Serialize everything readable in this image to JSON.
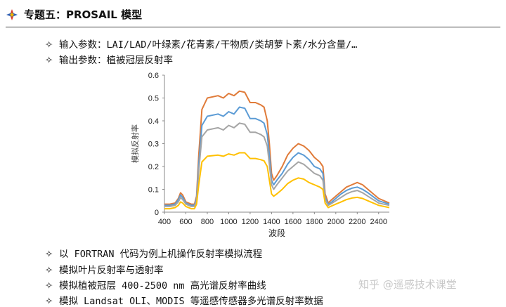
{
  "title": "专题五：PROSAIL 模型",
  "bullets_top": [
    "输入参数：LAI/LAD/叶绿素/花青素/干物质/类胡萝卜素/水分含量/…",
    "输出参数：植被冠层反射率"
  ],
  "bullets_bottom": [
    "以 FORTRAN 代码为例上机操作反射率模拟流程",
    "模拟叶片反射率与透射率",
    "模拟植被冠层 400-2500 nm 高光谱反射率曲线",
    "模拟 Landsat OLI、MODIS 等遥感传感器多光谱反射率数据"
  ],
  "bullet_symbol": "✧",
  "watermark": "知乎 @遥感技术课堂",
  "chart_data": {
    "type": "line",
    "xlabel": "波段",
    "ylabel": "模拟反射率",
    "xlim": [
      400,
      2500
    ],
    "ylim": [
      0,
      0.6
    ],
    "xticks": [
      400,
      600,
      800,
      1000,
      1200,
      1400,
      1600,
      1800,
      2000,
      2200,
      2400
    ],
    "yticks": [
      0,
      0.1,
      0.2,
      0.3,
      0.4,
      0.5,
      0.6
    ],
    "yticklabels": [
      "0",
      "0.1",
      "0.2",
      "0.3",
      "0.4",
      "0.5",
      "0.6"
    ],
    "grid": false,
    "x": [
      400,
      450,
      500,
      530,
      550,
      570,
      600,
      650,
      680,
      700,
      720,
      750,
      800,
      900,
      950,
      1000,
      1050,
      1100,
      1150,
      1200,
      1250,
      1300,
      1330,
      1360,
      1380,
      1400,
      1420,
      1450,
      1500,
      1550,
      1600,
      1650,
      1700,
      1750,
      1800,
      1850,
      1880,
      1900,
      1930,
      1950,
      2000,
      2050,
      2100,
      2150,
      2200,
      2250,
      2300,
      2400,
      2500
    ],
    "series": [
      {
        "color": "#e07b39",
        "values": [
          0.035,
          0.035,
          0.04,
          0.06,
          0.085,
          0.075,
          0.045,
          0.035,
          0.035,
          0.07,
          0.25,
          0.45,
          0.5,
          0.51,
          0.5,
          0.52,
          0.51,
          0.53,
          0.525,
          0.48,
          0.48,
          0.47,
          0.46,
          0.4,
          0.3,
          0.17,
          0.14,
          0.16,
          0.2,
          0.25,
          0.28,
          0.3,
          0.29,
          0.27,
          0.24,
          0.22,
          0.2,
          0.08,
          0.04,
          0.05,
          0.07,
          0.09,
          0.11,
          0.12,
          0.13,
          0.12,
          0.1,
          0.06,
          0.04
        ]
      },
      {
        "color": "#5b9bd5",
        "values": [
          0.03,
          0.03,
          0.035,
          0.055,
          0.075,
          0.065,
          0.04,
          0.03,
          0.03,
          0.06,
          0.21,
          0.38,
          0.42,
          0.43,
          0.42,
          0.44,
          0.43,
          0.46,
          0.455,
          0.41,
          0.41,
          0.4,
          0.39,
          0.34,
          0.25,
          0.14,
          0.12,
          0.14,
          0.17,
          0.21,
          0.24,
          0.26,
          0.25,
          0.23,
          0.2,
          0.19,
          0.17,
          0.065,
          0.035,
          0.04,
          0.06,
          0.08,
          0.095,
          0.105,
          0.11,
          0.1,
          0.085,
          0.05,
          0.035
        ]
      },
      {
        "color": "#a5a5a5",
        "values": [
          0.025,
          0.025,
          0.03,
          0.045,
          0.065,
          0.055,
          0.035,
          0.025,
          0.025,
          0.05,
          0.18,
          0.33,
          0.36,
          0.37,
          0.36,
          0.38,
          0.37,
          0.39,
          0.385,
          0.35,
          0.35,
          0.34,
          0.33,
          0.29,
          0.21,
          0.12,
          0.1,
          0.12,
          0.15,
          0.18,
          0.2,
          0.22,
          0.21,
          0.19,
          0.17,
          0.16,
          0.14,
          0.055,
          0.03,
          0.035,
          0.05,
          0.065,
          0.08,
          0.09,
          0.095,
          0.085,
          0.07,
          0.04,
          0.03
        ]
      },
      {
        "color": "#ffc000",
        "values": [
          0.015,
          0.015,
          0.02,
          0.03,
          0.045,
          0.04,
          0.025,
          0.015,
          0.015,
          0.035,
          0.12,
          0.22,
          0.245,
          0.25,
          0.245,
          0.255,
          0.25,
          0.26,
          0.26,
          0.235,
          0.235,
          0.23,
          0.225,
          0.2,
          0.14,
          0.08,
          0.07,
          0.08,
          0.1,
          0.125,
          0.14,
          0.15,
          0.145,
          0.13,
          0.12,
          0.11,
          0.1,
          0.04,
          0.02,
          0.025,
          0.035,
          0.045,
          0.055,
          0.062,
          0.065,
          0.06,
          0.05,
          0.03,
          0.02
        ]
      }
    ]
  }
}
